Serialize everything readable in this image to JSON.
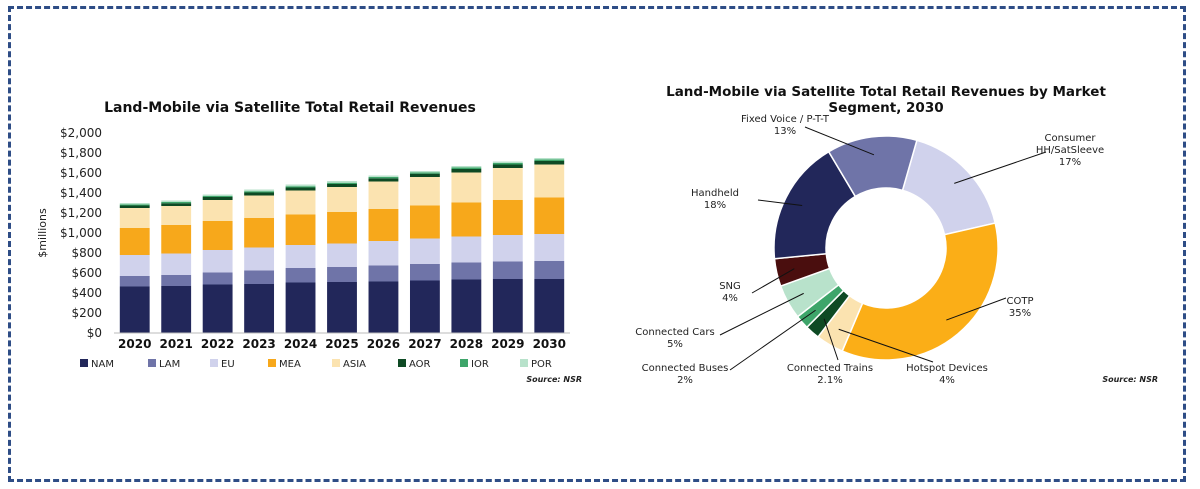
{
  "chart_data": [
    {
      "type": "bar",
      "stacked": true,
      "title": "Land-Mobile via Satellite Total Retail Revenues",
      "xlabel": "",
      "ylabel": "$millions",
      "ylim": [
        0,
        2000
      ],
      "yticks": [
        0,
        200,
        400,
        600,
        800,
        1000,
        1200,
        1400,
        1600,
        1800,
        2000
      ],
      "ytick_labels": [
        "$0",
        "$200",
        "$400",
        "$600",
        "$800",
        "$1,000",
        "$1,200",
        "$1,400",
        "$1,600",
        "$1,800",
        "$2,000"
      ],
      "categories": [
        "2020",
        "2021",
        "2022",
        "2023",
        "2024",
        "2025",
        "2026",
        "2027",
        "2028",
        "2029",
        "2030"
      ],
      "series": [
        {
          "name": "NAM",
          "color": "#22275a",
          "values": [
            465,
            470,
            485,
            490,
            505,
            510,
            515,
            525,
            535,
            540,
            540
          ]
        },
        {
          "name": "LAM",
          "color": "#6f74a8",
          "values": [
            105,
            110,
            120,
            135,
            145,
            150,
            160,
            165,
            170,
            175,
            180
          ]
        },
        {
          "name": "EU",
          "color": "#d0d2ec",
          "values": [
            210,
            215,
            225,
            230,
            230,
            235,
            245,
            255,
            260,
            265,
            270
          ]
        },
        {
          "name": "MEA",
          "color": "#f7a81b",
          "values": [
            270,
            285,
            290,
            295,
            305,
            315,
            320,
            330,
            340,
            350,
            365
          ]
        },
        {
          "name": "ASIA",
          "color": "#fbe3b0",
          "values": [
            200,
            190,
            210,
            225,
            240,
            250,
            275,
            285,
            300,
            320,
            330
          ]
        },
        {
          "name": "AOR",
          "color": "#0e4a24",
          "values": [
            25,
            28,
            30,
            30,
            30,
            30,
            32,
            33,
            35,
            35,
            35
          ]
        },
        {
          "name": "IOR",
          "color": "#3ea56a",
          "values": [
            12,
            12,
            12,
            13,
            13,
            13,
            14,
            14,
            15,
            15,
            15
          ]
        },
        {
          "name": "POR",
          "color": "#b8e2cb",
          "values": [
            13,
            15,
            13,
            17,
            17,
            17,
            14,
            13,
            15,
            15,
            15
          ]
        }
      ],
      "source": "Source: NSR"
    },
    {
      "type": "pie",
      "donut": true,
      "title_lines": [
        "Land-Mobile via Satellite Total Retail Revenues by Market",
        "Segment, 2030"
      ],
      "slices": [
        {
          "label_lines": [
            "Consumer",
            "HH/SatSleeve"
          ],
          "pct_label": "17%",
          "value": 17,
          "color": "#d0d2ec"
        },
        {
          "label_lines": [
            "COTP"
          ],
          "pct_label": "35%",
          "value": 35,
          "color": "#fbae17"
        },
        {
          "label_lines": [
            "Hotspot Devices"
          ],
          "pct_label": "4%",
          "value": 4,
          "color": "#fbe3b0"
        },
        {
          "label_lines": [
            "Connected Trains"
          ],
          "pct_label": "2.1%",
          "value": 2.1,
          "color": "#0e4a24"
        },
        {
          "label_lines": [
            "Connected Buses"
          ],
          "pct_label": "2%",
          "value": 2,
          "color": "#3ea56a"
        },
        {
          "label_lines": [
            "Connected Cars"
          ],
          "pct_label": "5%",
          "value": 5,
          "color": "#b8e2cb"
        },
        {
          "label_lines": [
            "SNG"
          ],
          "pct_label": "4%",
          "value": 4,
          "color": "#4a0e0e"
        },
        {
          "label_lines": [
            "Handheld"
          ],
          "pct_label": "18%",
          "value": 18,
          "color": "#22275a"
        },
        {
          "label_lines": [
            "Fixed Voice / P-T-T"
          ],
          "pct_label": "13%",
          "value": 13,
          "color": "#6f74a8"
        }
      ],
      "source": "Source: NSR"
    }
  ]
}
